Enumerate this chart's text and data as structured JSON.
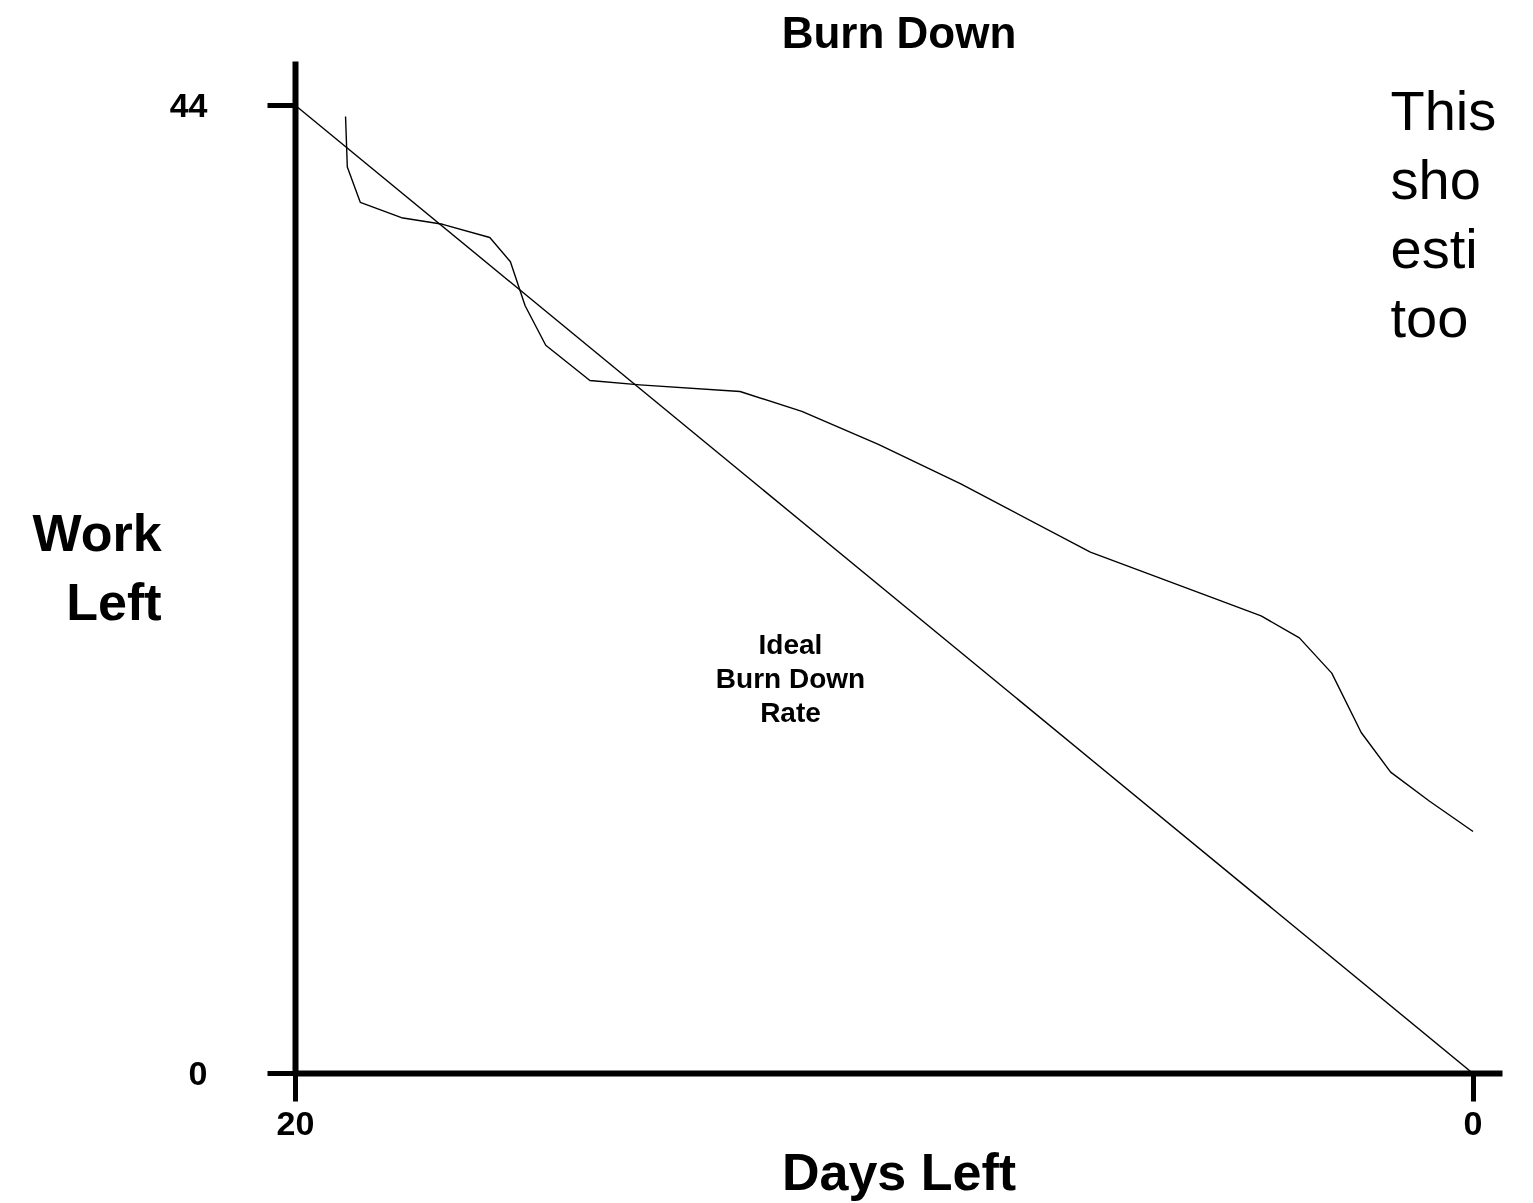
{
  "chart_data": {
    "type": "line",
    "title": "Burn Down",
    "xlabel": "Days Left",
    "ylabel": "Work\nLeft",
    "xlim": [
      20,
      -0.5
    ],
    "ylim": [
      0,
      46
    ],
    "xticks": [
      20,
      0
    ],
    "yticks": [
      44,
      0
    ],
    "series": [
      {
        "color": "#000000",
        "x": [
          20,
          0
        ],
        "values": [
          44,
          0
        ]
      },
      {
        "color": "#000000",
        "x": [
          19.15,
          19.12,
          18.9,
          18.2,
          17.5,
          16.7,
          16.35,
          16.1,
          15.75,
          15.0,
          14.15,
          12.45,
          11.4,
          10.1,
          8.7,
          6.5,
          4.6,
          3.6,
          2.95,
          2.4,
          1.9,
          1.4,
          0.75,
          0.0
        ],
        "values": [
          43.5,
          41.2,
          39.6,
          38.9,
          38.6,
          38.0,
          36.9,
          34.9,
          33.1,
          31.5,
          31.3,
          31.0,
          30.1,
          28.6,
          26.8,
          23.7,
          21.8,
          20.8,
          19.8,
          18.2,
          15.5,
          13.7,
          12.4,
          11.0
        ]
      }
    ],
    "annotations": [
      "Ideal\nBurn Down\nRate",
      "This\nsho\nesti\ntoo"
    ]
  }
}
